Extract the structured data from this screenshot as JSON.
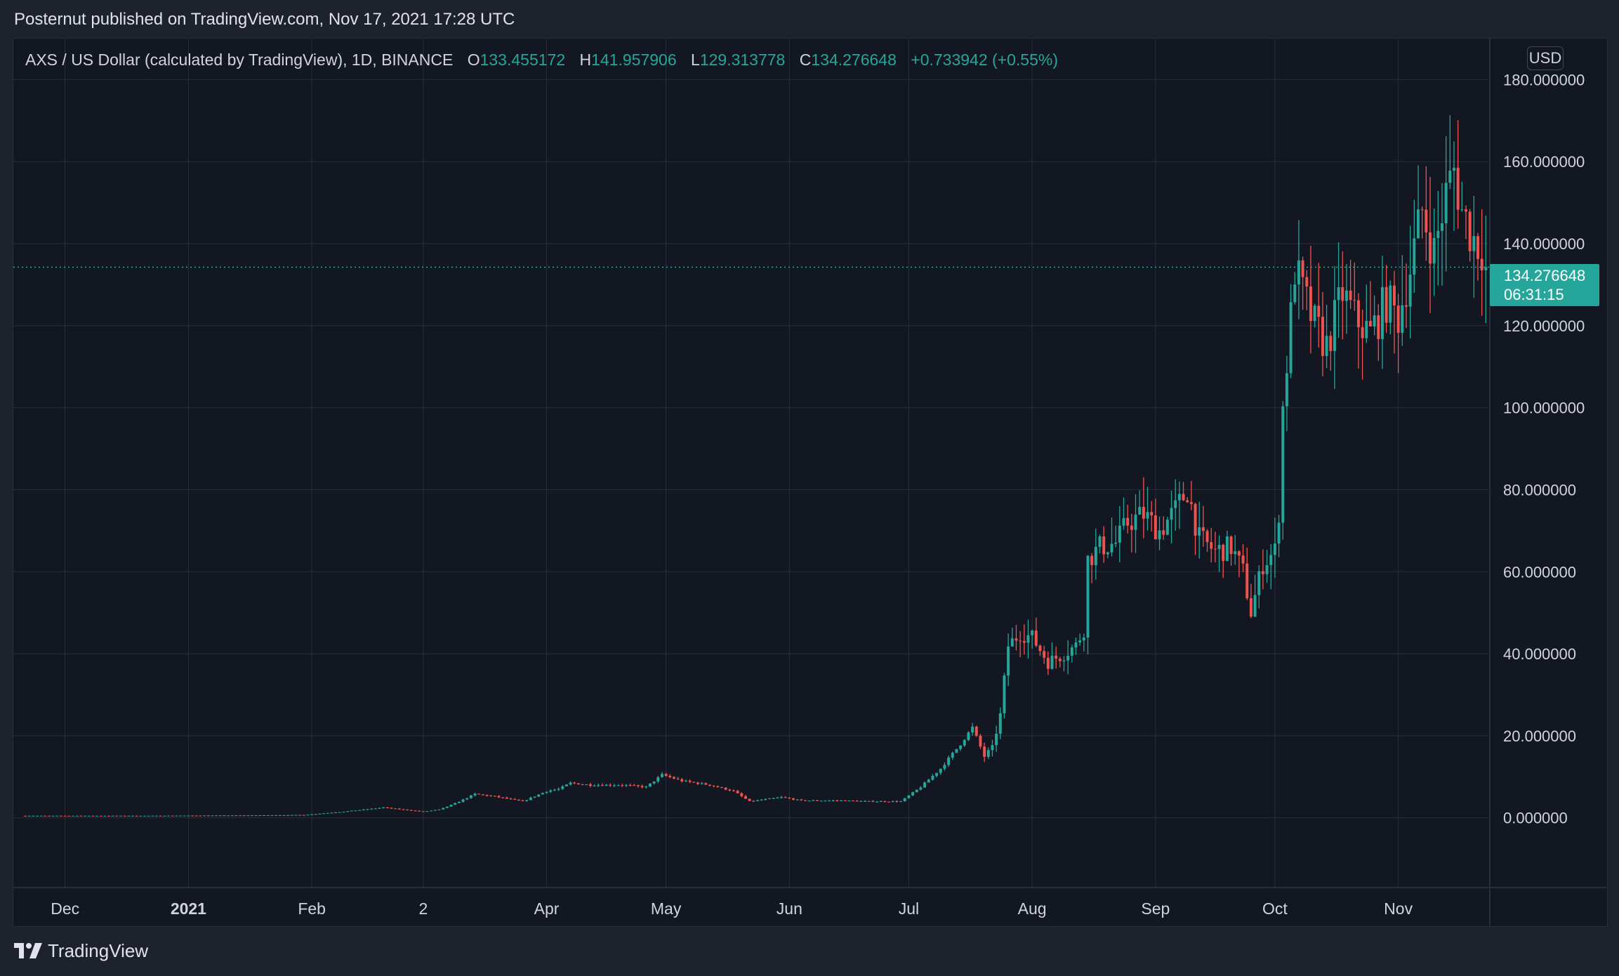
{
  "header": {
    "publish_line": "Posternut published on TradingView.com, Nov 17, 2021 17:28 UTC"
  },
  "legend": {
    "symbol": "AXS / US Dollar (calculated by TradingView), 1D, BINANCE",
    "open_label": "O",
    "open_value": "133.455172",
    "high_label": "H",
    "high_value": "141.957906",
    "low_label": "L",
    "low_value": "129.313778",
    "close_label": "C",
    "close_value": "134.276648",
    "change": "+0.733942 (+0.55%)"
  },
  "currency_button": "USD",
  "last_price": {
    "price": "134.276648",
    "countdown": "06:31:15"
  },
  "footer": {
    "brand": "TradingView"
  },
  "colors": {
    "background": "#131722",
    "up": "#26a69a",
    "down": "#ef5350",
    "grid": "#2a2e39"
  },
  "chart_data": {
    "type": "candlestick",
    "symbol": "AXS / US Dollar",
    "interval": "1D",
    "exchange": "BINANCE",
    "x_ticks": [
      {
        "label": "Dec",
        "day": 10
      },
      {
        "label": "2021",
        "day": 41,
        "bold": true
      },
      {
        "label": "Feb",
        "day": 72
      },
      {
        "label": "2",
        "day": 100
      },
      {
        "label": "Apr",
        "day": 131
      },
      {
        "label": "May",
        "day": 161
      },
      {
        "label": "Jun",
        "day": 192
      },
      {
        "label": "Jul",
        "day": 222
      },
      {
        "label": "Aug",
        "day": 253
      },
      {
        "label": "Sep",
        "day": 284
      },
      {
        "label": "Oct",
        "day": 314
      },
      {
        "label": "Nov",
        "day": 345
      }
    ],
    "y_ticks": [
      "180.000000",
      "160.000000",
      "140.000000",
      "120.000000",
      "100.000000",
      "80.000000",
      "60.000000",
      "40.000000",
      "20.000000",
      "0.000000"
    ],
    "y_range": [
      -17,
      190
    ],
    "x_day_range": [
      -3,
      368
    ],
    "last_price": 134.276648,
    "price_path": [
      [
        0,
        0.5
      ],
      [
        30,
        0.5
      ],
      [
        55,
        0.6
      ],
      [
        70,
        0.7
      ],
      [
        80,
        1.5
      ],
      [
        90,
        2.5
      ],
      [
        100,
        1.5
      ],
      [
        104,
        2.0
      ],
      [
        108,
        3.5
      ],
      [
        113,
        5.8
      ],
      [
        118,
        5.2
      ],
      [
        125,
        4.0
      ],
      [
        131,
        6.5
      ],
      [
        134,
        7.0
      ],
      [
        137,
        8.5
      ],
      [
        142,
        8.0
      ],
      [
        150,
        8.0
      ],
      [
        156,
        7.5
      ],
      [
        160,
        10.5
      ],
      [
        165,
        9.0
      ],
      [
        172,
        8.0
      ],
      [
        178,
        6.5
      ],
      [
        182,
        4.0
      ],
      [
        190,
        5.0
      ],
      [
        195,
        4.2
      ],
      [
        205,
        4.2
      ],
      [
        212,
        4.0
      ],
      [
        220,
        4.0
      ],
      [
        225,
        7.5
      ],
      [
        230,
        12.0
      ],
      [
        235,
        18.0
      ],
      [
        238,
        22.0
      ],
      [
        241,
        15.0
      ],
      [
        243,
        17.0
      ],
      [
        245,
        25.0
      ],
      [
        247,
        42.0
      ],
      [
        250,
        45.0
      ],
      [
        253,
        44.0
      ],
      [
        257,
        38.0
      ],
      [
        261,
        40.0
      ],
      [
        264,
        42.0
      ],
      [
        266,
        46.0
      ],
      [
        267,
        63.0
      ],
      [
        270,
        66.0
      ],
      [
        274,
        67.0
      ],
      [
        277,
        72.0
      ],
      [
        281,
        74.0
      ],
      [
        285,
        70.0
      ],
      [
        289,
        75.0
      ],
      [
        292,
        80.0
      ],
      [
        295,
        68.0
      ],
      [
        299,
        65.0
      ],
      [
        303,
        66.0
      ],
      [
        306,
        60.0
      ],
      [
        308,
        50.0
      ],
      [
        311,
        62.0
      ],
      [
        314,
        65.0
      ],
      [
        315,
        75.0
      ],
      [
        316,
        100.0
      ],
      [
        318,
        122.0
      ],
      [
        319,
        134.0
      ],
      [
        321,
        128.0
      ],
      [
        324,
        120.0
      ],
      [
        327,
        115.0
      ],
      [
        331,
        128.0
      ],
      [
        334,
        122.0
      ],
      [
        338,
        118.0
      ],
      [
        342,
        126.0
      ],
      [
        345,
        122.0
      ],
      [
        348,
        134.0
      ],
      [
        351,
        148.0
      ],
      [
        354,
        138.0
      ],
      [
        357,
        152.0
      ],
      [
        359,
        158.0
      ],
      [
        361,
        148.0
      ],
      [
        364,
        141.0
      ],
      [
        366,
        139.0
      ],
      [
        367,
        134.3
      ]
    ]
  }
}
